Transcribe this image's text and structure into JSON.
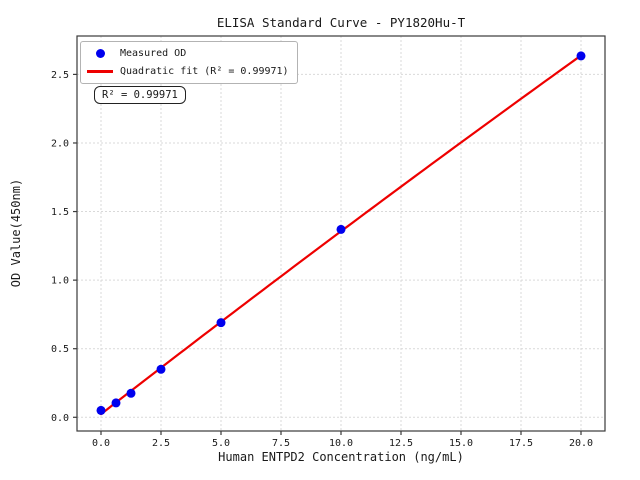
{
  "window": {
    "background": "#ffffff"
  },
  "chart_data": {
    "type": "scatter",
    "title": "ELISA Standard Curve - PY1820Hu-T",
    "xlabel": "Human ENTPD2 Concentration (ng/mL)",
    "ylabel": "OD Value(450nm)",
    "xlim": [
      -1,
      21
    ],
    "ylim": [
      -0.1,
      2.78
    ],
    "xticks": [
      0,
      2.5,
      5,
      7.5,
      10,
      12.5,
      15,
      17.5,
      20
    ],
    "xtick_labels": [
      "0.0",
      "2.5",
      "5.0",
      "7.5",
      "10.0",
      "12.5",
      "15.0",
      "17.5",
      "20.0"
    ],
    "yticks": [
      0,
      0.5,
      1,
      1.5,
      2,
      2.5
    ],
    "ytick_labels": [
      "0.0",
      "0.5",
      "1.0",
      "1.5",
      "2.0",
      "2.5"
    ],
    "grid": true,
    "legend_position": "upper-left",
    "series": [
      {
        "name": "Measured OD",
        "type": "scatter",
        "color": "#0000ee",
        "x": [
          0,
          0.625,
          1.25,
          2.5,
          5,
          10,
          20
        ],
        "y": [
          0.05,
          0.105,
          0.175,
          0.35,
          0.69,
          1.37,
          2.635
        ]
      },
      {
        "name": "Quadratic fit (R² = 0.99971)",
        "type": "quadratic_fit",
        "color": "#ee0000",
        "fit_of_series": 0,
        "x_range": [
          0,
          20
        ]
      }
    ],
    "r_squared": "0.99971",
    "annotation": "R² = 0.99971",
    "colors": {
      "point": "#0000ee",
      "line": "#ee0000",
      "grid": "#d9d9d9",
      "spine": "#3a3a3a",
      "text": "#1a1a1a"
    }
  }
}
